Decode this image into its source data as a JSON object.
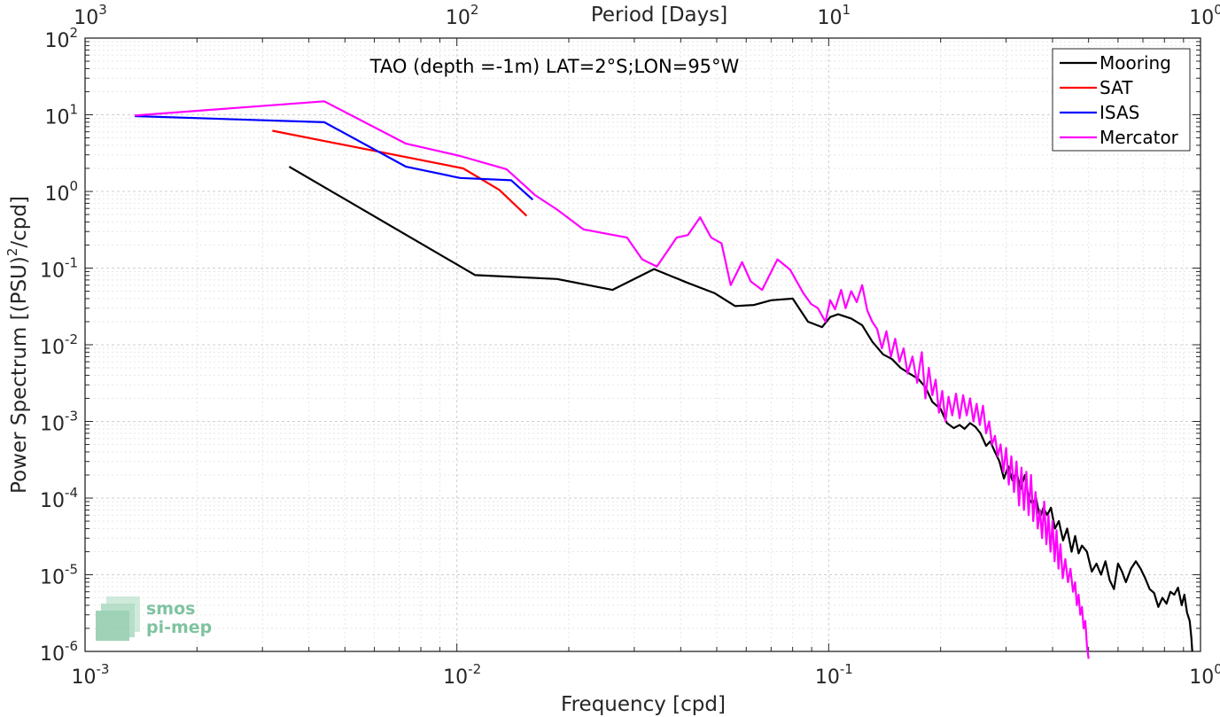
{
  "chart_data": {
    "type": "line",
    "title": "TAO (depth =-1m) LAT=2°S;LON=95°W",
    "xlabel": "Frequency [cpd]",
    "ylabel": "Power Spectrum [(PSU)",
    "ylabel_sup": "2",
    "ylabel_tail": "/cpd]",
    "top_xlabel": "Period [Days]",
    "xscale": "log",
    "yscale": "log",
    "xlim": [
      0.001,
      1
    ],
    "ylim": [
      1e-06,
      100
    ],
    "grid": true,
    "legend_position": "top-right",
    "x_ticks": [
      {
        "base": "10",
        "exp": "-3"
      },
      {
        "base": "10",
        "exp": "-2"
      },
      {
        "base": "10",
        "exp": "-1"
      },
      {
        "base": "10",
        "exp": "0"
      }
    ],
    "y_ticks": [
      {
        "base": "10",
        "exp": "-6"
      },
      {
        "base": "10",
        "exp": "-5"
      },
      {
        "base": "10",
        "exp": "-4"
      },
      {
        "base": "10",
        "exp": "-3"
      },
      {
        "base": "10",
        "exp": "-2"
      },
      {
        "base": "10",
        "exp": "-1"
      },
      {
        "base": "10",
        "exp": "0"
      },
      {
        "base": "10",
        "exp": "1"
      },
      {
        "base": "10",
        "exp": "2"
      }
    ],
    "top_ticks": [
      {
        "base": "10",
        "exp": "3"
      },
      {
        "base": "10",
        "exp": "2"
      },
      {
        "base": "10",
        "exp": "1"
      },
      {
        "base": "10",
        "exp": "0"
      }
    ],
    "series": [
      {
        "name": "Mooring",
        "color": "#000000",
        "points": [
          [
            0.00354,
            2.1
          ],
          [
            0.0112,
            0.081
          ],
          [
            0.0186,
            0.072
          ],
          [
            0.0262,
            0.052
          ],
          [
            0.0339,
            0.097
          ],
          [
            0.0415,
            0.065
          ],
          [
            0.0494,
            0.047
          ],
          [
            0.056,
            0.032
          ],
          [
            0.063,
            0.033
          ],
          [
            0.07,
            0.038
          ],
          [
            0.08,
            0.04
          ],
          [
            0.088,
            0.02
          ],
          [
            0.096,
            0.017
          ],
          [
            0.101,
            0.023
          ],
          [
            0.106,
            0.025
          ],
          [
            0.115,
            0.022
          ],
          [
            0.123,
            0.018
          ],
          [
            0.131,
            0.011
          ],
          [
            0.14,
            0.0075
          ],
          [
            0.148,
            0.0065
          ],
          [
            0.156,
            0.005
          ],
          [
            0.165,
            0.0042
          ],
          [
            0.174,
            0.0036
          ],
          [
            0.182,
            0.0028
          ],
          [
            0.19,
            0.0018
          ],
          [
            0.2,
            0.00145
          ],
          [
            0.208,
            0.00095
          ],
          [
            0.217,
            0.00082
          ],
          [
            0.225,
            0.0009
          ],
          [
            0.232,
            0.0008
          ],
          [
            0.24,
            0.00095
          ],
          [
            0.248,
            0.00085
          ],
          [
            0.256,
            0.0007
          ],
          [
            0.265,
            0.00048
          ],
          [
            0.272,
            0.00055
          ],
          [
            0.28,
            0.0004
          ],
          [
            0.288,
            0.0003
          ],
          [
            0.296,
            0.00018
          ],
          [
            0.304,
            0.00026
          ],
          [
            0.312,
            0.00017
          ],
          [
            0.32,
            0.00022
          ],
          [
            0.328,
            0.00013
          ],
          [
            0.337,
            0.0002
          ],
          [
            0.345,
            0.0001
          ],
          [
            0.353,
            8.5e-05
          ],
          [
            0.361,
            0.0001
          ],
          [
            0.37,
            5.5e-05
          ],
          [
            0.378,
            7.5e-05
          ],
          [
            0.387,
            6e-05
          ],
          [
            0.396,
            7.5e-05
          ],
          [
            0.406,
            4e-05
          ],
          [
            0.416,
            5e-05
          ],
          [
            0.427,
            2.8e-05
          ],
          [
            0.438,
            4e-05
          ],
          [
            0.45,
            2e-05
          ],
          [
            0.46,
            3.2e-05
          ],
          [
            0.47,
            1.9e-05
          ],
          [
            0.48,
            2.4e-05
          ],
          [
            0.495,
            2e-05
          ],
          [
            0.51,
            1.1e-05
          ],
          [
            0.525,
            1.4e-05
          ],
          [
            0.54,
            1e-05
          ],
          [
            0.555,
            1.5e-05
          ],
          [
            0.57,
            8.5e-06
          ],
          [
            0.585,
            6.5e-06
          ],
          [
            0.6,
            1.4e-05
          ],
          [
            0.615,
            1.1e-05
          ],
          [
            0.63,
            8e-06
          ],
          [
            0.65,
            1.2e-05
          ],
          [
            0.67,
            1.5e-05
          ],
          [
            0.69,
            1.2e-05
          ],
          [
            0.71,
            9e-06
          ],
          [
            0.73,
            6.5e-06
          ],
          [
            0.75,
            5.8e-06
          ],
          [
            0.77,
            3.8e-06
          ],
          [
            0.79,
            5e-06
          ],
          [
            0.81,
            4.2e-06
          ],
          [
            0.83,
            6e-06
          ],
          [
            0.85,
            5.5e-06
          ],
          [
            0.87,
            6.8e-06
          ],
          [
            0.89,
            4e-06
          ],
          [
            0.905,
            5.5e-06
          ],
          [
            0.92,
            3.2e-06
          ],
          [
            0.935,
            2.5e-06
          ],
          [
            0.945,
            1.5e-06
          ],
          [
            0.95,
            1e-06
          ]
        ]
      },
      {
        "name": "SAT",
        "color": "#ff0000",
        "points": [
          [
            0.00319,
            6.2
          ],
          [
            0.0104,
            2.0
          ],
          [
            0.013,
            1.05
          ],
          [
            0.0154,
            0.48
          ]
        ]
      },
      {
        "name": "ISAS",
        "color": "#0000ff",
        "points": [
          [
            0.00136,
            9.6
          ],
          [
            0.0044,
            8.0
          ],
          [
            0.0073,
            2.1
          ],
          [
            0.0102,
            1.5
          ],
          [
            0.014,
            1.4
          ],
          [
            0.016,
            0.78
          ]
        ]
      },
      {
        "name": "Mercator",
        "color": "#ff00ff",
        "points": [
          [
            0.00136,
            9.8
          ],
          [
            0.0044,
            15.0
          ],
          [
            0.0073,
            4.2
          ],
          [
            0.0102,
            2.9
          ],
          [
            0.0136,
            1.95
          ],
          [
            0.0155,
            1.1
          ],
          [
            0.0162,
            0.9
          ],
          [
            0.0186,
            0.58
          ],
          [
            0.0219,
            0.32
          ],
          [
            0.0287,
            0.25
          ],
          [
            0.0315,
            0.13
          ],
          [
            0.0345,
            0.105
          ],
          [
            0.039,
            0.25
          ],
          [
            0.0418,
            0.27
          ],
          [
            0.0451,
            0.46
          ],
          [
            0.0483,
            0.25
          ],
          [
            0.0515,
            0.21
          ],
          [
            0.0545,
            0.06
          ],
          [
            0.0585,
            0.12
          ],
          [
            0.0617,
            0.067
          ],
          [
            0.0662,
            0.052
          ],
          [
            0.0728,
            0.13
          ],
          [
            0.0788,
            0.095
          ],
          [
            0.0855,
            0.047
          ],
          [
            0.0897,
            0.034
          ],
          [
            0.0935,
            0.03
          ],
          [
            0.098,
            0.02
          ],
          [
            0.101,
            0.038
          ],
          [
            0.104,
            0.029
          ],
          [
            0.108,
            0.052
          ],
          [
            0.111,
            0.03
          ],
          [
            0.115,
            0.05
          ],
          [
            0.119,
            0.036
          ],
          [
            0.123,
            0.06
          ],
          [
            0.127,
            0.028
          ],
          [
            0.131,
            0.02
          ],
          [
            0.135,
            0.016
          ],
          [
            0.139,
            0.009
          ],
          [
            0.143,
            0.015
          ],
          [
            0.147,
            0.007
          ],
          [
            0.151,
            0.012
          ],
          [
            0.155,
            0.006
          ],
          [
            0.159,
            0.009
          ],
          [
            0.163,
            0.0042
          ],
          [
            0.168,
            0.007
          ],
          [
            0.173,
            0.0032
          ],
          [
            0.178,
            0.008
          ],
          [
            0.182,
            0.002
          ],
          [
            0.186,
            0.005
          ],
          [
            0.19,
            0.0022
          ],
          [
            0.194,
            0.0035
          ],
          [
            0.198,
            0.0013
          ],
          [
            0.202,
            0.0025
          ],
          [
            0.206,
            0.001
          ],
          [
            0.21,
            0.0021
          ],
          [
            0.215,
            0.0012
          ],
          [
            0.22,
            0.0023
          ],
          [
            0.225,
            0.0011
          ],
          [
            0.23,
            0.0022
          ],
          [
            0.235,
            0.0012
          ],
          [
            0.24,
            0.002
          ],
          [
            0.245,
            0.001
          ],
          [
            0.25,
            0.0017
          ],
          [
            0.255,
            0.0009
          ],
          [
            0.26,
            0.0016
          ],
          [
            0.265,
            0.0007
          ],
          [
            0.27,
            0.001
          ],
          [
            0.275,
            0.0005
          ],
          [
            0.28,
            0.00065
          ],
          [
            0.285,
            0.00035
          ],
          [
            0.29,
            0.0005
          ],
          [
            0.295,
            0.00022
          ],
          [
            0.3,
            0.00045
          ],
          [
            0.305,
            0.00015
          ],
          [
            0.31,
            0.00035
          ],
          [
            0.315,
            0.00012
          ],
          [
            0.32,
            0.0003
          ],
          [
            0.325,
            8e-05
          ],
          [
            0.33,
            0.00025
          ],
          [
            0.335,
            7e-05
          ],
          [
            0.34,
            0.00022
          ],
          [
            0.345,
            6e-05
          ],
          [
            0.35,
            0.0002
          ],
          [
            0.355,
            5e-05
          ],
          [
            0.36,
            0.00012
          ],
          [
            0.365,
            4e-05
          ],
          [
            0.37,
            7e-05
          ],
          [
            0.375,
            3e-05
          ],
          [
            0.38,
            9e-05
          ],
          [
            0.385,
            2.5e-05
          ],
          [
            0.39,
            6e-05
          ],
          [
            0.395,
            2e-05
          ],
          [
            0.4,
            5e-05
          ],
          [
            0.405,
            1.5e-05
          ],
          [
            0.41,
            3.8e-05
          ],
          [
            0.415,
            1.2e-05
          ],
          [
            0.42,
            2.5e-05
          ],
          [
            0.426,
            9e-06
          ],
          [
            0.433,
            1.6e-05
          ],
          [
            0.44,
            8e-06
          ],
          [
            0.447,
            1.2e-05
          ],
          [
            0.454,
            6e-06
          ],
          [
            0.46,
            8e-06
          ],
          [
            0.465,
            4e-06
          ],
          [
            0.47,
            5.5e-06
          ],
          [
            0.475,
            3e-06
          ],
          [
            0.48,
            3.8e-06
          ],
          [
            0.485,
            2e-06
          ],
          [
            0.49,
            2.5e-06
          ],
          [
            0.495,
            1.2e-06
          ],
          [
            0.5,
            8e-07
          ]
        ]
      }
    ]
  },
  "logo": {
    "line1": "smos",
    "line2": "pi-mep",
    "color": "#7fc3a0"
  }
}
